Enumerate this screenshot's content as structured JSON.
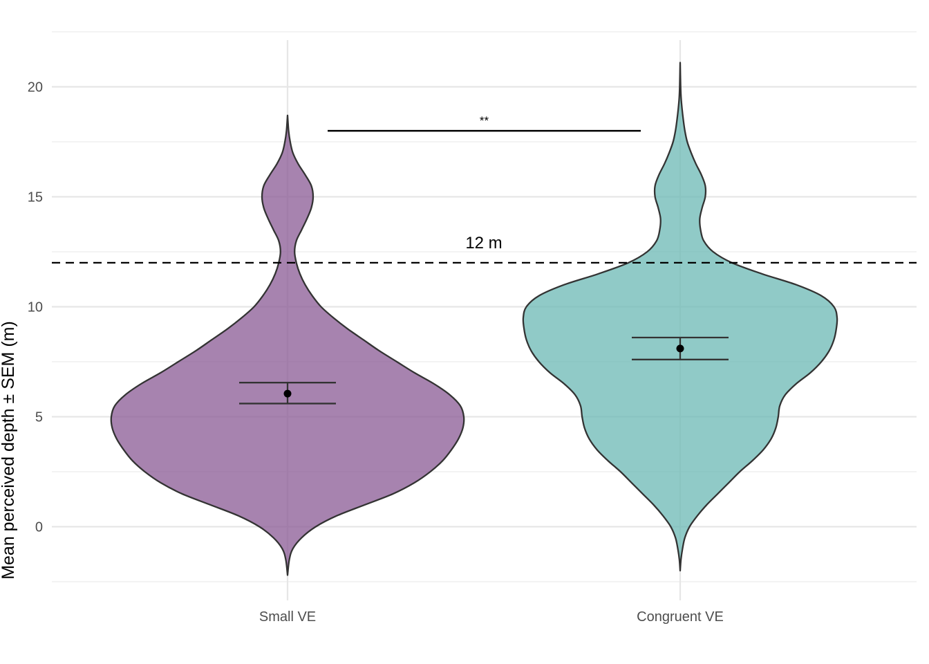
{
  "chart_data": {
    "type": "violin",
    "xlabel": "",
    "ylabel": "Mean perceived depth ± SEM (m)",
    "ylim": [
      -2.5,
      22.1
    ],
    "yticks": [
      0,
      5,
      10,
      15,
      20
    ],
    "grid": true,
    "legend": "none",
    "categories": [
      "Small VE",
      "Congruent VE"
    ],
    "groups": [
      {
        "category": "Small VE",
        "fill": "#8a5a94",
        "mean": 6.05,
        "sem_low": 5.6,
        "sem_high": 6.55,
        "y_range": [
          -2.2,
          18.7
        ],
        "density_profile": [
          [
            -2.2,
            0.0
          ],
          [
            -1.5,
            0.01
          ],
          [
            -1.0,
            0.03
          ],
          [
            -0.5,
            0.08
          ],
          [
            0.0,
            0.16
          ],
          [
            0.5,
            0.28
          ],
          [
            1.0,
            0.44
          ],
          [
            1.5,
            0.6
          ],
          [
            2.0,
            0.72
          ],
          [
            2.5,
            0.81
          ],
          [
            3.0,
            0.88
          ],
          [
            3.5,
            0.93
          ],
          [
            4.0,
            0.97
          ],
          [
            4.5,
            0.995
          ],
          [
            5.0,
            1.0
          ],
          [
            5.5,
            0.98
          ],
          [
            6.0,
            0.92
          ],
          [
            6.5,
            0.83
          ],
          [
            7.0,
            0.72
          ],
          [
            7.5,
            0.62
          ],
          [
            8.0,
            0.52
          ],
          [
            8.5,
            0.43
          ],
          [
            9.0,
            0.34
          ],
          [
            9.5,
            0.26
          ],
          [
            10.0,
            0.19
          ],
          [
            10.5,
            0.14
          ],
          [
            11.0,
            0.1
          ],
          [
            11.5,
            0.07
          ],
          [
            12.0,
            0.05
          ],
          [
            12.5,
            0.04
          ],
          [
            13.0,
            0.05
          ],
          [
            13.5,
            0.08
          ],
          [
            14.0,
            0.11
          ],
          [
            14.5,
            0.135
          ],
          [
            15.0,
            0.145
          ],
          [
            15.5,
            0.135
          ],
          [
            16.0,
            0.1
          ],
          [
            16.5,
            0.06
          ],
          [
            17.0,
            0.03
          ],
          [
            17.5,
            0.015
          ],
          [
            18.0,
            0.006
          ],
          [
            18.7,
            0.0
          ]
        ]
      },
      {
        "category": "Congruent VE",
        "fill": "#6bb8b4",
        "mean": 8.1,
        "sem_low": 7.6,
        "sem_high": 8.6,
        "y_range": [
          -2.0,
          21.1
        ],
        "density_profile": [
          [
            -2.0,
            0.0
          ],
          [
            -1.5,
            0.005
          ],
          [
            -1.0,
            0.015
          ],
          [
            -0.5,
            0.03
          ],
          [
            0.0,
            0.06
          ],
          [
            0.5,
            0.11
          ],
          [
            1.0,
            0.17
          ],
          [
            1.5,
            0.24
          ],
          [
            2.0,
            0.31
          ],
          [
            2.5,
            0.38
          ],
          [
            3.0,
            0.46
          ],
          [
            3.5,
            0.53
          ],
          [
            4.0,
            0.58
          ],
          [
            4.5,
            0.61
          ],
          [
            5.0,
            0.625
          ],
          [
            5.5,
            0.635
          ],
          [
            6.0,
            0.67
          ],
          [
            6.5,
            0.74
          ],
          [
            7.0,
            0.83
          ],
          [
            7.5,
            0.9
          ],
          [
            8.0,
            0.95
          ],
          [
            8.5,
            0.98
          ],
          [
            9.0,
            0.995
          ],
          [
            9.5,
            1.0
          ],
          [
            10.0,
            0.98
          ],
          [
            10.5,
            0.9
          ],
          [
            11.0,
            0.74
          ],
          [
            11.5,
            0.52
          ],
          [
            12.0,
            0.33
          ],
          [
            12.5,
            0.21
          ],
          [
            13.0,
            0.15
          ],
          [
            13.5,
            0.13
          ],
          [
            14.0,
            0.125
          ],
          [
            14.5,
            0.14
          ],
          [
            15.0,
            0.16
          ],
          [
            15.5,
            0.16
          ],
          [
            16.0,
            0.135
          ],
          [
            16.5,
            0.1
          ],
          [
            17.0,
            0.07
          ],
          [
            17.5,
            0.045
          ],
          [
            18.0,
            0.03
          ],
          [
            18.5,
            0.02
          ],
          [
            19.0,
            0.012
          ],
          [
            19.5,
            0.006
          ],
          [
            20.0,
            0.003
          ],
          [
            21.1,
            0.0
          ]
        ]
      }
    ],
    "reference_line": {
      "value": 12,
      "label": "12 m",
      "style": "dashed"
    },
    "significance": {
      "from": "Small VE",
      "to": "Congruent VE",
      "y": 18,
      "label": "**"
    }
  }
}
